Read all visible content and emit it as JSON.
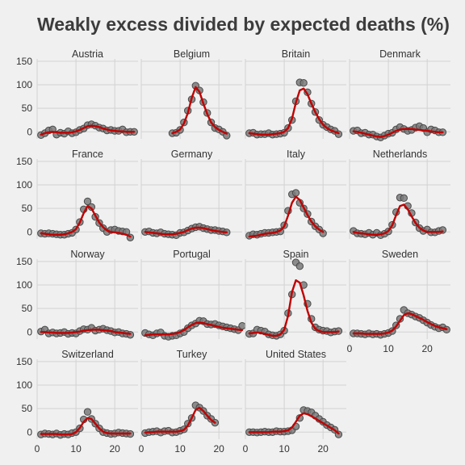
{
  "chart_data": {
    "type": "scatter",
    "title": "Weakly excess divided by expected deaths (%)",
    "xlabel": "",
    "ylabel": "",
    "xlim": [
      0,
      26
    ],
    "ylim": [
      -15,
      155
    ],
    "x_ticks": [
      0,
      10,
      20
    ],
    "y_ticks": [
      0,
      50,
      100,
      150
    ],
    "grid": true,
    "panels": [
      {
        "name": "Austria",
        "x": [
          1,
          2,
          3,
          4,
          5,
          6,
          7,
          8,
          9,
          10,
          11,
          12,
          13,
          14,
          15,
          16,
          17,
          18,
          19,
          20,
          21,
          22,
          23,
          24,
          25
        ],
        "y": [
          -7,
          -3,
          3,
          5,
          -6,
          -2,
          -4,
          1,
          -3,
          -1,
          4,
          7,
          14,
          16,
          13,
          9,
          7,
          3,
          4,
          2,
          2,
          5,
          -1,
          0,
          0
        ],
        "fit": [
          -6,
          -3,
          -1,
          0,
          -1,
          -2,
          -2,
          -2,
          -1,
          1,
          4,
          8,
          12,
          13,
          12,
          10,
          7,
          5,
          3,
          2,
          1,
          1,
          0,
          0,
          0
        ]
      },
      {
        "name": "Belgium",
        "x": [
          8,
          9,
          10,
          11,
          12,
          13,
          14,
          15,
          16,
          17,
          18,
          19,
          20,
          21,
          22
        ],
        "y": [
          -3,
          -2,
          4,
          20,
          45,
          69,
          98,
          88,
          63,
          40,
          20,
          8,
          5,
          0,
          -8
        ],
        "fit": [
          -3,
          0,
          5,
          18,
          40,
          72,
          95,
          85,
          60,
          38,
          20,
          10,
          4,
          0,
          -4
        ]
      },
      {
        "name": "Britain",
        "x": [
          1,
          2,
          3,
          4,
          5,
          6,
          7,
          8,
          9,
          10,
          11,
          12,
          13,
          14,
          15,
          16,
          17,
          18,
          19,
          20,
          21,
          22,
          23,
          24
        ],
        "y": [
          -3,
          -2,
          -6,
          -5,
          -5,
          -3,
          -6,
          -5,
          -4,
          -2,
          8,
          25,
          65,
          105,
          104,
          84,
          60,
          42,
          25,
          15,
          10,
          5,
          2,
          -5
        ],
        "fit": [
          -3,
          -4,
          -5,
          -6,
          -6,
          -6,
          -5,
          -4,
          -3,
          0,
          8,
          28,
          62,
          88,
          92,
          80,
          60,
          42,
          27,
          15,
          8,
          3,
          0,
          -3
        ]
      },
      {
        "name": "Denmark",
        "x": [
          1,
          2,
          3,
          4,
          5,
          6,
          7,
          8,
          9,
          10,
          11,
          12,
          13,
          14,
          15,
          16,
          17,
          18,
          19,
          20,
          21,
          22,
          23,
          24
        ],
        "y": [
          2,
          3,
          -3,
          -2,
          -6,
          -6,
          -10,
          -12,
          -8,
          -4,
          -2,
          5,
          10,
          6,
          2,
          4,
          9,
          12,
          8,
          -1,
          5,
          3,
          -1,
          -1
        ],
        "fit": [
          1,
          0,
          -2,
          -4,
          -6,
          -8,
          -10,
          -11,
          -9,
          -6,
          -2,
          2,
          5,
          6,
          6,
          6,
          5,
          4,
          3,
          2,
          1,
          0,
          -1,
          -1
        ]
      },
      {
        "name": "France",
        "x": [
          1,
          2,
          3,
          4,
          5,
          6,
          7,
          8,
          9,
          10,
          11,
          12,
          13,
          14,
          15,
          16,
          17,
          18,
          19,
          20,
          21,
          22,
          23,
          24
        ],
        "y": [
          -3,
          -4,
          -3,
          -4,
          -5,
          -6,
          -6,
          -4,
          -2,
          5,
          21,
          48,
          65,
          53,
          32,
          19,
          8,
          0,
          4,
          5,
          2,
          1,
          0,
          -12
        ],
        "fit": [
          -3,
          -4,
          -5,
          -6,
          -6,
          -6,
          -5,
          -3,
          0,
          6,
          20,
          40,
          55,
          50,
          35,
          20,
          10,
          3,
          0,
          -1,
          -2,
          -4,
          -6,
          -10
        ]
      },
      {
        "name": "Germany",
        "x": [
          1,
          2,
          3,
          4,
          5,
          6,
          7,
          8,
          9,
          10,
          11,
          12,
          13,
          14,
          15,
          16,
          17,
          18,
          19,
          20,
          21,
          22
        ],
        "y": [
          0,
          1,
          -2,
          -3,
          -1,
          -4,
          -5,
          -6,
          -7,
          -2,
          -1,
          3,
          7,
          10,
          11,
          8,
          6,
          4,
          4,
          2,
          1,
          -1
        ],
        "fit": [
          0,
          -1,
          -2,
          -3,
          -4,
          -5,
          -5,
          -5,
          -4,
          -2,
          0,
          4,
          7,
          9,
          9,
          8,
          6,
          4,
          2,
          1,
          0,
          -1
        ]
      },
      {
        "name": "Italy",
        "x": [
          1,
          2,
          3,
          4,
          5,
          6,
          7,
          8,
          9,
          10,
          11,
          12,
          13,
          14,
          15,
          16,
          17,
          18,
          19,
          20
        ],
        "y": [
          -8,
          -5,
          -6,
          -4,
          -2,
          -2,
          -1,
          0,
          1,
          14,
          45,
          80,
          83,
          62,
          50,
          38,
          22,
          12,
          5,
          -3
        ],
        "fit": [
          -10,
          -9,
          -8,
          -6,
          -4,
          -3,
          -2,
          0,
          3,
          12,
          35,
          62,
          75,
          68,
          52,
          36,
          22,
          12,
          5,
          0
        ]
      },
      {
        "name": "Netherlands",
        "x": [
          1,
          2,
          3,
          4,
          5,
          6,
          7,
          8,
          9,
          10,
          11,
          12,
          13,
          14,
          15,
          16,
          17,
          18,
          19,
          20,
          21,
          22,
          23,
          24
        ],
        "y": [
          2,
          -3,
          -4,
          -5,
          -2,
          -6,
          -2,
          -7,
          -4,
          1,
          15,
          42,
          73,
          72,
          55,
          40,
          20,
          8,
          2,
          5,
          -1,
          -1,
          2,
          4
        ],
        "fit": [
          0,
          -2,
          -3,
          -4,
          -5,
          -6,
          -6,
          -5,
          -3,
          2,
          14,
          36,
          55,
          58,
          48,
          33,
          19,
          9,
          3,
          0,
          0,
          0,
          0,
          1
        ]
      },
      {
        "name": "Norway",
        "x": [
          1,
          2,
          3,
          4,
          5,
          6,
          7,
          8,
          9,
          10,
          11,
          12,
          13,
          14,
          15,
          16,
          17,
          18,
          19,
          20,
          21,
          22,
          23,
          24
        ],
        "y": [
          1,
          5,
          -3,
          -1,
          -3,
          -2,
          0,
          -4,
          -2,
          -3,
          2,
          6,
          5,
          9,
          3,
          5,
          7,
          4,
          2,
          -1,
          0,
          -3,
          -4,
          -6
        ],
        "fit": [
          0,
          0,
          -1,
          -1,
          -2,
          -2,
          -2,
          -2,
          -1,
          0,
          1,
          3,
          4,
          5,
          5,
          5,
          4,
          3,
          2,
          0,
          -1,
          -2,
          -3,
          -4
        ]
      },
      {
        "name": "Portugal",
        "x": [
          1,
          2,
          3,
          4,
          5,
          6,
          7,
          8,
          9,
          10,
          11,
          12,
          13,
          14,
          15,
          16,
          17,
          18,
          19,
          20,
          21,
          22,
          23,
          24,
          25,
          26
        ],
        "y": [
          -2,
          -5,
          -7,
          -3,
          -1,
          -8,
          -10,
          -8,
          -7,
          -3,
          0,
          8,
          14,
          18,
          24,
          23,
          17,
          16,
          17,
          14,
          12,
          10,
          8,
          6,
          4,
          13
        ],
        "fit": [
          -7,
          -6,
          -5,
          -5,
          -5,
          -5,
          -5,
          -4,
          -3,
          0,
          4,
          10,
          15,
          19,
          20,
          19,
          17,
          15,
          13,
          11,
          9,
          8,
          7,
          6,
          5,
          4
        ]
      },
      {
        "name": "Spain",
        "x": [
          1,
          2,
          3,
          4,
          5,
          6,
          7,
          8,
          9,
          10,
          11,
          12,
          13,
          14,
          15,
          16,
          17,
          18,
          19,
          20,
          21,
          22,
          23,
          24
        ],
        "y": [
          -4,
          -3,
          5,
          3,
          1,
          -5,
          -7,
          -8,
          -5,
          3,
          40,
          80,
          148,
          140,
          100,
          60,
          28,
          10,
          5,
          3,
          2,
          -1,
          1,
          2
        ],
        "fit": [
          -3,
          -2,
          -1,
          -2,
          -4,
          -6,
          -8,
          -8,
          -5,
          5,
          35,
          85,
          110,
          105,
          78,
          45,
          20,
          7,
          2,
          0,
          0,
          0,
          0,
          1
        ]
      },
      {
        "name": "Sweden",
        "x": [
          1,
          2,
          3,
          4,
          5,
          6,
          7,
          8,
          9,
          10,
          11,
          12,
          13,
          14,
          15,
          16,
          17,
          18,
          19,
          20,
          21,
          22,
          23,
          24,
          25
        ],
        "y": [
          -3,
          -3,
          -4,
          -5,
          -3,
          -5,
          -4,
          -6,
          -4,
          -2,
          2,
          14,
          28,
          47,
          40,
          37,
          33,
          30,
          25,
          20,
          15,
          11,
          8,
          10,
          5
        ],
        "fit": [
          -3,
          -3,
          -3,
          -4,
          -4,
          -4,
          -4,
          -4,
          -3,
          -1,
          3,
          12,
          24,
          36,
          40,
          38,
          34,
          30,
          26,
          21,
          17,
          13,
          10,
          8,
          6
        ]
      },
      {
        "name": "Switzerland",
        "x": [
          1,
          2,
          3,
          4,
          5,
          6,
          7,
          8,
          9,
          10,
          11,
          12,
          13,
          14,
          15,
          16,
          17,
          18,
          19,
          20,
          21,
          22,
          23,
          24
        ],
        "y": [
          -5,
          -3,
          -4,
          -5,
          -3,
          -6,
          -4,
          -5,
          -2,
          0,
          8,
          27,
          43,
          28,
          18,
          8,
          0,
          -2,
          -4,
          -3,
          -1,
          -2,
          -3,
          -4
        ],
        "fit": [
          -4,
          -4,
          -4,
          -4,
          -4,
          -5,
          -5,
          -5,
          -4,
          0,
          9,
          22,
          30,
          28,
          18,
          8,
          1,
          -2,
          -3,
          -3,
          -3,
          -3,
          -3,
          -3
        ]
      },
      {
        "name": "Turkey",
        "x": [
          1,
          2,
          3,
          4,
          5,
          6,
          7,
          8,
          9,
          10,
          11,
          12,
          13,
          14,
          15,
          16,
          17,
          18,
          19
        ],
        "y": [
          -2,
          0,
          1,
          2,
          -1,
          2,
          3,
          -1,
          0,
          3,
          6,
          18,
          30,
          57,
          52,
          45,
          35,
          28,
          20
        ],
        "fit": [
          -1,
          0,
          0,
          1,
          1,
          1,
          1,
          1,
          1,
          2,
          5,
          14,
          30,
          47,
          52,
          45,
          35,
          26,
          20
        ]
      },
      {
        "name": "United States",
        "x": [
          1,
          2,
          3,
          4,
          5,
          6,
          7,
          8,
          9,
          10,
          11,
          12,
          13,
          14,
          15,
          16,
          17,
          18,
          19,
          20,
          21,
          22,
          23,
          24
        ],
        "y": [
          0,
          0,
          -1,
          0,
          1,
          0,
          0,
          2,
          1,
          1,
          2,
          4,
          12,
          30,
          47,
          45,
          42,
          35,
          28,
          22,
          15,
          10,
          5,
          -5
        ],
        "fit": [
          0,
          0,
          0,
          0,
          0,
          0,
          1,
          1,
          1,
          2,
          4,
          10,
          22,
          35,
          40,
          38,
          34,
          29,
          24,
          19,
          14,
          9,
          4,
          -3
        ]
      }
    ]
  }
}
